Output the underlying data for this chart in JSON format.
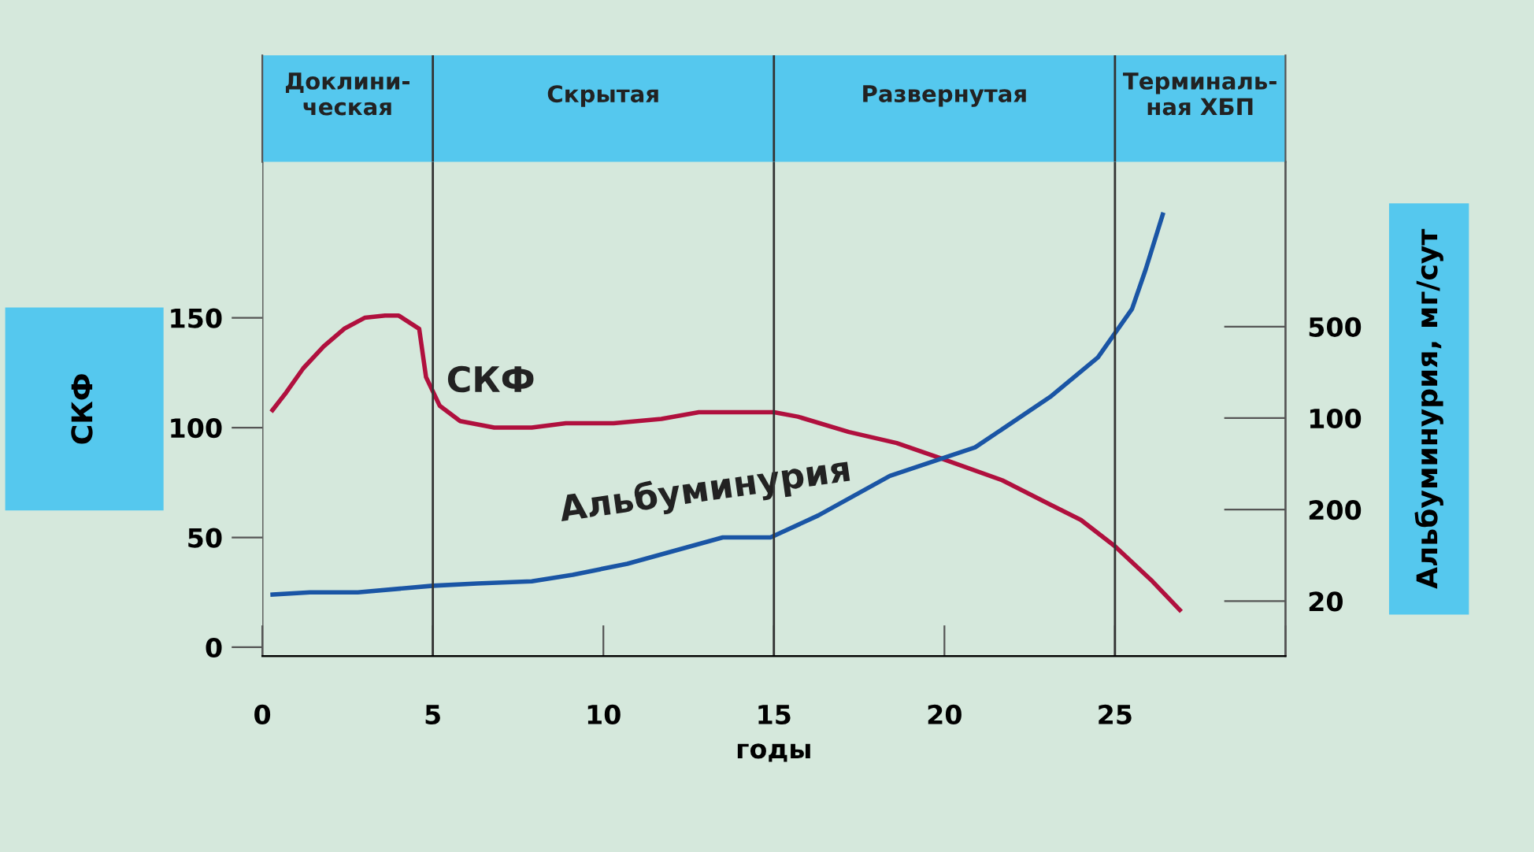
{
  "chart_data": {
    "type": "line",
    "xlabel": "годы",
    "ylabel": "СКФ",
    "y2label": "Альбуминурия, мг/сут",
    "xlim": [
      0,
      30
    ],
    "xticks": [
      0,
      5,
      10,
      15,
      20,
      25,
      {
        "value": 30,
        "label": null
      }
    ],
    "ylim": [
      -4,
      221
    ],
    "yticks": [
      0,
      50,
      100,
      150
    ],
    "y2_categories": [
      "500",
      "100",
      "200",
      "20"
    ],
    "legend": false,
    "grid": false,
    "marker": "none",
    "line_style": "solid",
    "series": [
      {
        "name": "СКФ",
        "color": "#b0103e",
        "x": [
          0.3,
          0.7,
          1.2,
          1.8,
          2.4,
          3.0,
          3.6,
          4.0,
          4.6,
          4.8,
          5.2,
          5.8,
          6.8,
          7.9,
          8.9,
          10.3,
          11.7,
          12.8,
          15.0,
          15.7,
          17.2,
          18.6,
          19.9,
          21.7,
          23.1,
          24.0,
          25.0,
          26.1,
          26.9
        ],
        "values": [
          108,
          116,
          127,
          137,
          145,
          150,
          151,
          151,
          145,
          123,
          110,
          103,
          100,
          100,
          102,
          102,
          104,
          107,
          107,
          105,
          98,
          93,
          86,
          76,
          65,
          58,
          46,
          30,
          17
        ]
      },
      {
        "name": "Альбуминурия",
        "color": "#1a55a5",
        "x": [
          0.3,
          1.4,
          2.8,
          5.0,
          6.3,
          7.9,
          9.1,
          10.7,
          12.1,
          13.5,
          14.9,
          16.3,
          18.4,
          20.9,
          23.1,
          24.5,
          25.0,
          25.5,
          25.9,
          26.4
        ],
        "values": [
          24,
          25,
          25,
          28,
          29,
          30,
          33,
          38,
          44,
          50,
          50,
          60,
          78,
          91,
          114,
          132,
          143,
          154,
          172,
          197
        ]
      }
    ],
    "ref_lines": [
      {
        "axis": "x",
        "value": 5,
        "color": "#333333"
      },
      {
        "axis": "x",
        "value": 15,
        "color": "#333333"
      },
      {
        "axis": "x",
        "value": 25,
        "color": "#333333"
      }
    ],
    "annotations": [
      "Доклини-\nческая",
      "Скрытая",
      "Развернутая",
      "Терминаль-\nная ХБП"
    ]
  }
}
